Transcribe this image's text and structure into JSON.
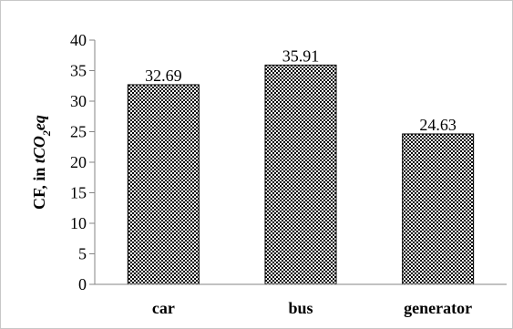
{
  "chart_data": {
    "type": "bar",
    "categories": [
      "car",
      "bus",
      "generator"
    ],
    "values": [
      32.69,
      35.91,
      24.63
    ],
    "data_labels": [
      "32.69",
      "35.91",
      "24.63"
    ],
    "title": "",
    "xlabel": "",
    "ylabel": {
      "prefix": "CF, in ",
      "unit_base": "tCO",
      "unit_sub": "2",
      "unit_suffix": "eq"
    },
    "ylim": [
      0,
      40
    ],
    "yticks": [
      0,
      5,
      10,
      15,
      20,
      25,
      30,
      35,
      40
    ],
    "grid": false,
    "legend": "none",
    "bar_fill": "dotted black pattern",
    "colors": {
      "bar_dot": "#000000",
      "bar_background": "#ffffff",
      "axis": "#868686",
      "frame": "#c8c8c8"
    }
  }
}
